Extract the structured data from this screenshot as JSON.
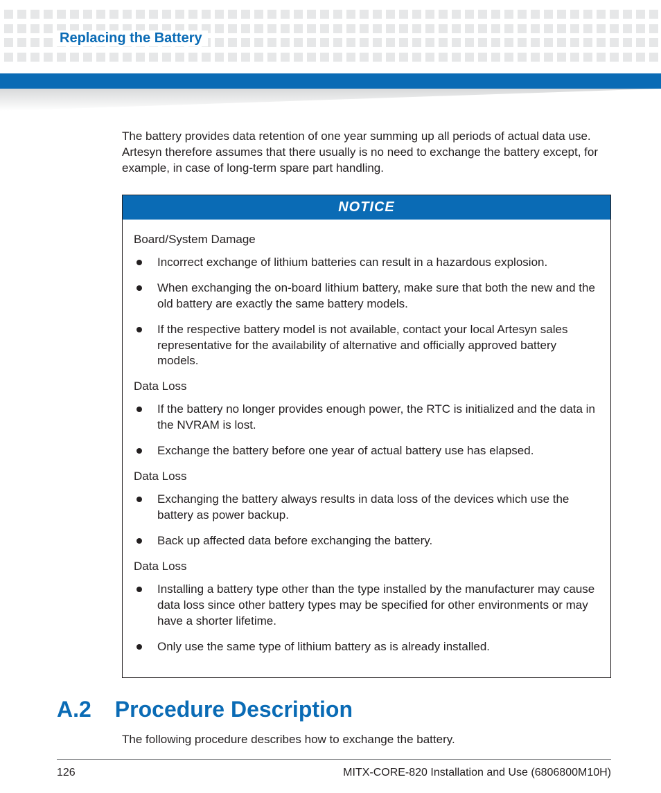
{
  "header": {
    "running_title": "Replacing the Battery",
    "title_color": "#0a6bb5",
    "bar_color": "#0a6bb5",
    "dot_color": "#e6e7e8",
    "dot_rows": 4,
    "dots_per_row": 50
  },
  "intro": "The battery provides data retention of one year summing up all periods of actual data use. Artesyn therefore assumes that there usually is no need to exchange the battery except, for example, in case of long-term spare part handling.",
  "notice": {
    "label": "NOTICE",
    "header_bg": "#0a6bb5",
    "header_text_color": "#ffffff",
    "border_color": "#231f20",
    "groups": [
      {
        "heading": "Board/System Damage",
        "items": [
          "Incorrect exchange of lithium batteries can result in a hazardous explosion.",
          "When exchanging the on-board lithium battery, make sure that both the new and the old battery are exactly the same battery models.",
          "If the respective battery model is not available, contact your local Artesyn sales representative for the availability of alternative and officially approved battery models."
        ]
      },
      {
        "heading": "Data Loss",
        "items": [
          "If the battery no longer provides enough power, the RTC is initialized and the data in the NVRAM is lost.",
          "Exchange the battery before one year of actual battery use has elapsed."
        ]
      },
      {
        "heading": "Data Loss",
        "items": [
          "Exchanging the battery always results in data loss of the devices which use the battery as power backup.",
          "Back up affected data before exchanging the battery."
        ]
      },
      {
        "heading": "Data Loss",
        "items": [
          "Installing a battery type other than the type installed by the manufacturer may cause data loss since other battery types may be specified for other environments or may have a shorter lifetime.",
          "Only use the same type of lithium battery as is already installed."
        ]
      }
    ]
  },
  "section": {
    "number": "A.2",
    "title": "Procedure Description",
    "body": "The following procedure describes how to exchange the battery."
  },
  "footer": {
    "page_number": "126",
    "doc_title": "MITX-CORE-820 Installation and Use (6806800M10H)"
  },
  "typography": {
    "body_fontsize_pt": 12,
    "heading_fontsize_pt": 24,
    "running_title_fontsize_pt": 15,
    "text_color": "#231f20",
    "accent_color": "#0a6bb5",
    "background_color": "#ffffff"
  }
}
